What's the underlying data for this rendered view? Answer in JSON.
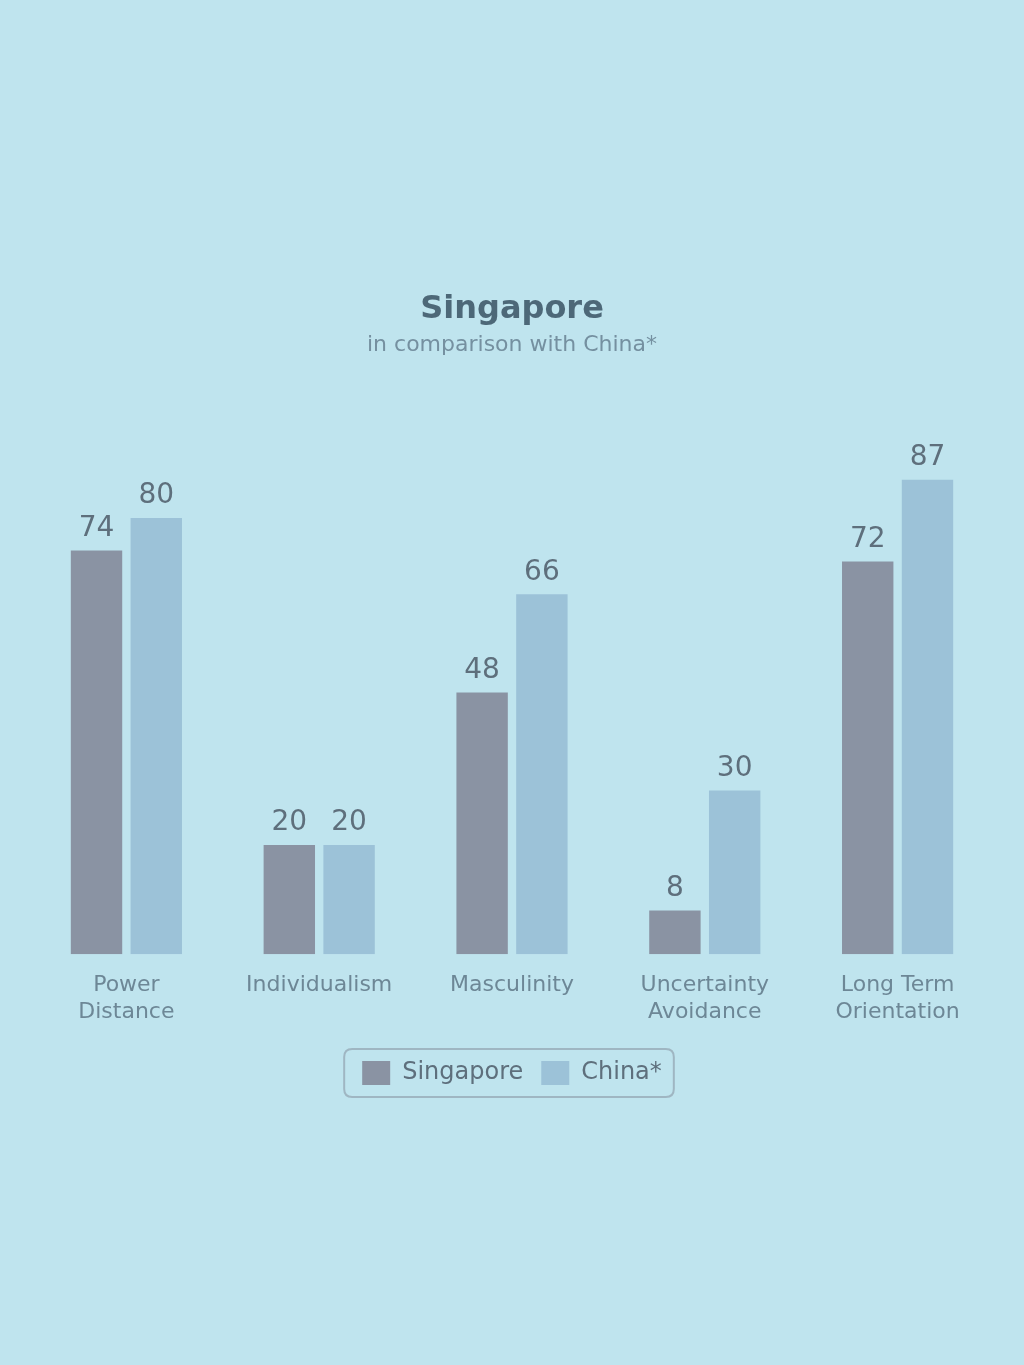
{
  "chart_data": {
    "type": "bar",
    "title": "Singapore",
    "subtitle": "in comparison with China*",
    "categories": [
      "Power Distance",
      "Individualism",
      "Masculinity",
      "Uncertainty Avoidance",
      "Long Term Orientation"
    ],
    "series": [
      {
        "name": "Singapore",
        "color": "#8a93a3",
        "values": [
          74,
          20,
          48,
          8,
          72
        ]
      },
      {
        "name": "China*",
        "color": "#9cc2d8",
        "values": [
          80,
          20,
          66,
          30,
          87
        ]
      }
    ],
    "data_labels": true,
    "legend": "bottom"
  }
}
